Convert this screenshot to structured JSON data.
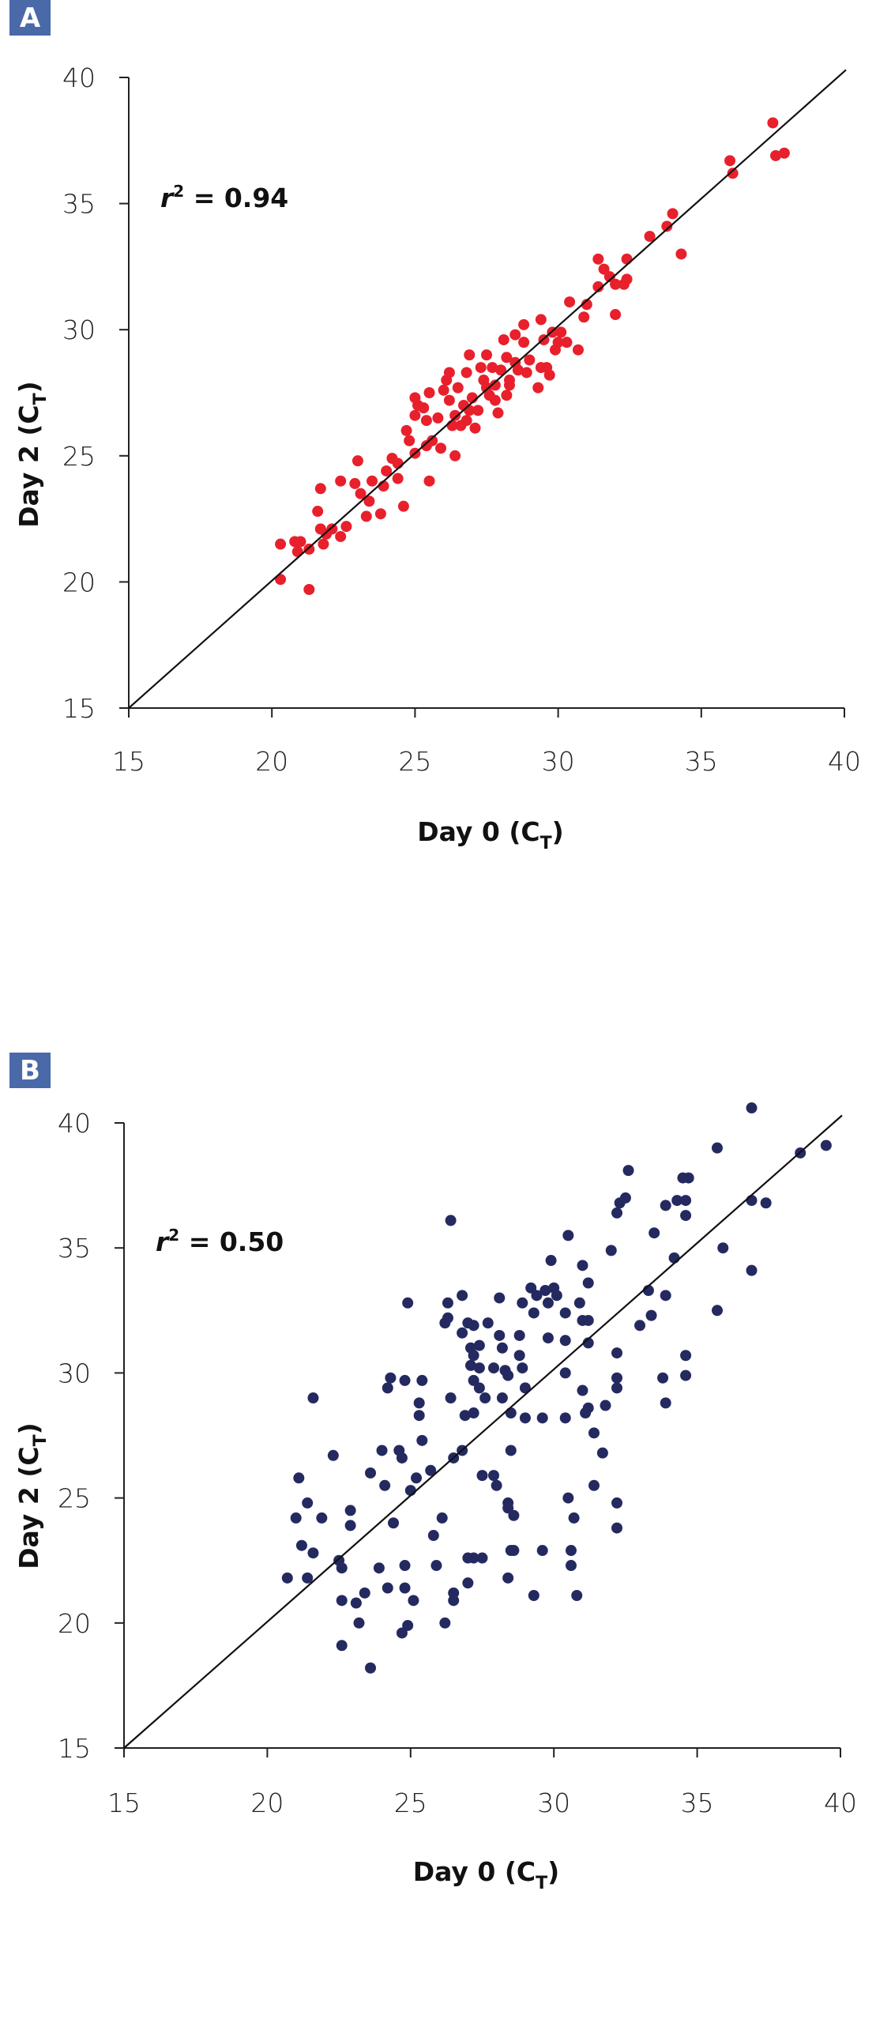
{
  "chart_data": [
    {
      "type": "scatter",
      "panel": "A",
      "annotation": {
        "var": "r",
        "sup": "2",
        "rest": " = 0.94"
      },
      "xlabel": {
        "main": "Day 0 (C",
        "sub": "T",
        "end": ")"
      },
      "ylabel": {
        "main": "Day 2 (C",
        "sub": "T",
        "end": ")"
      },
      "xlim": [
        15,
        40
      ],
      "ylim": [
        15,
        40
      ],
      "xticks": [
        "15",
        "20",
        "25",
        "30",
        "35",
        "40"
      ],
      "yticks": [
        "15",
        "20",
        "25",
        "30",
        "35",
        "40"
      ],
      "reference_line": "y = x",
      "color": "#e8202c",
      "points": [
        [
          37.5,
          38.2
        ],
        [
          37.6,
          36.9
        ],
        [
          37.9,
          37.0
        ],
        [
          36.0,
          36.7
        ],
        [
          36.1,
          36.2
        ],
        [
          34.0,
          34.6
        ],
        [
          33.8,
          34.1
        ],
        [
          33.2,
          33.7
        ],
        [
          34.3,
          33.0
        ],
        [
          32.4,
          32.8
        ],
        [
          31.4,
          32.8
        ],
        [
          31.6,
          32.4
        ],
        [
          31.8,
          32.1
        ],
        [
          32.0,
          31.8
        ],
        [
          32.3,
          31.8
        ],
        [
          32.4,
          32.0
        ],
        [
          31.4,
          31.7
        ],
        [
          32.0,
          30.6
        ],
        [
          31.0,
          31.0
        ],
        [
          30.9,
          30.5
        ],
        [
          30.4,
          31.1
        ],
        [
          30.7,
          29.2
        ],
        [
          30.1,
          29.9
        ],
        [
          30.3,
          29.5
        ],
        [
          29.5,
          29.6
        ],
        [
          29.4,
          30.4
        ],
        [
          29.4,
          28.5
        ],
        [
          29.6,
          28.5
        ],
        [
          29.7,
          28.2
        ],
        [
          29.3,
          27.7
        ],
        [
          28.8,
          30.2
        ],
        [
          28.5,
          29.8
        ],
        [
          28.1,
          29.6
        ],
        [
          28.8,
          29.5
        ],
        [
          28.2,
          28.9
        ],
        [
          28.5,
          28.7
        ],
        [
          28.0,
          28.4
        ],
        [
          28.3,
          28.0
        ],
        [
          27.7,
          28.5
        ],
        [
          27.5,
          29.0
        ],
        [
          26.9,
          29.0
        ],
        [
          27.3,
          28.5
        ],
        [
          26.8,
          28.3
        ],
        [
          26.2,
          28.3
        ],
        [
          26.1,
          28.0
        ],
        [
          26.5,
          27.7
        ],
        [
          26.0,
          27.6
        ],
        [
          25.5,
          27.5
        ],
        [
          25.0,
          27.3
        ],
        [
          25.1,
          27.0
        ],
        [
          25.0,
          26.6
        ],
        [
          25.4,
          26.4
        ],
        [
          25.8,
          26.5
        ],
        [
          26.4,
          26.6
        ],
        [
          26.8,
          26.4
        ],
        [
          27.2,
          26.8
        ],
        [
          27.6,
          27.4
        ],
        [
          27.8,
          27.2
        ],
        [
          28.2,
          27.4
        ],
        [
          27.9,
          26.7
        ],
        [
          28.3,
          27.8
        ],
        [
          26.3,
          26.2
        ],
        [
          25.4,
          25.4
        ],
        [
          25.6,
          25.6
        ],
        [
          25.9,
          25.3
        ],
        [
          26.4,
          25.0
        ],
        [
          25.0,
          25.1
        ],
        [
          24.8,
          25.6
        ],
        [
          24.7,
          26.0
        ],
        [
          25.5,
          24.0
        ],
        [
          24.4,
          24.7
        ],
        [
          24.2,
          24.9
        ],
        [
          24.0,
          24.4
        ],
        [
          24.4,
          24.1
        ],
        [
          23.9,
          23.8
        ],
        [
          24.6,
          23.0
        ],
        [
          23.5,
          24.0
        ],
        [
          23.0,
          24.8
        ],
        [
          22.4,
          24.0
        ],
        [
          22.9,
          23.9
        ],
        [
          23.1,
          23.5
        ],
        [
          23.4,
          23.2
        ],
        [
          23.8,
          22.7
        ],
        [
          23.3,
          22.6
        ],
        [
          22.6,
          22.2
        ],
        [
          22.4,
          21.8
        ],
        [
          22.1,
          22.1
        ],
        [
          21.9,
          21.9
        ],
        [
          21.7,
          22.1
        ],
        [
          21.8,
          21.5
        ],
        [
          21.6,
          22.8
        ],
        [
          21.7,
          23.7
        ],
        [
          21.3,
          21.3
        ],
        [
          21.0,
          21.6
        ],
        [
          20.8,
          21.6
        ],
        [
          20.9,
          21.2
        ],
        [
          20.3,
          21.5
        ],
        [
          20.3,
          20.1
        ],
        [
          21.3,
          19.7
        ],
        [
          26.9,
          26.8
        ],
        [
          27.1,
          26.1
        ],
        [
          27.5,
          27.7
        ],
        [
          28.6,
          28.4
        ],
        [
          29.0,
          28.8
        ],
        [
          27.0,
          27.3
        ],
        [
          26.7,
          27.0
        ],
        [
          29.8,
          29.9
        ],
        [
          30.0,
          29.5
        ],
        [
          26.2,
          27.2
        ],
        [
          25.3,
          26.9
        ],
        [
          27.4,
          28.0
        ],
        [
          27.8,
          27.8
        ],
        [
          26.6,
          26.2
        ],
        [
          28.9,
          28.3
        ],
        [
          29.9,
          29.2
        ]
      ]
    },
    {
      "type": "scatter",
      "panel": "B",
      "annotation": {
        "var": "r",
        "sup": "2",
        "rest": " = 0.50"
      },
      "xlabel": {
        "main": "Day 0 (C",
        "sub": "T",
        "end": ")"
      },
      "ylabel": {
        "main": "Day 2 (C",
        "sub": "T",
        "end": ")"
      },
      "xlim": [
        15,
        40
      ],
      "ylim": [
        15,
        40
      ],
      "xticks": [
        "15",
        "20",
        "25",
        "30",
        "35",
        "40"
      ],
      "yticks": [
        "15",
        "20",
        "25",
        "30",
        "35",
        "40"
      ],
      "reference_line": "y = x",
      "color": "#242a60",
      "points": [
        [
          36.9,
          40.6
        ],
        [
          39.5,
          39.1
        ],
        [
          38.6,
          38.8
        ],
        [
          35.7,
          39.0
        ],
        [
          32.6,
          38.1
        ],
        [
          34.5,
          37.8
        ],
        [
          34.7,
          37.8
        ],
        [
          32.5,
          37.0
        ],
        [
          32.3,
          36.8
        ],
        [
          33.9,
          36.7
        ],
        [
          34.3,
          36.9
        ],
        [
          34.6,
          36.9
        ],
        [
          36.9,
          36.9
        ],
        [
          37.4,
          36.8
        ],
        [
          34.6,
          36.3
        ],
        [
          32.2,
          36.4
        ],
        [
          26.4,
          36.1
        ],
        [
          30.5,
          35.5
        ],
        [
          33.5,
          35.6
        ],
        [
          32.0,
          34.9
        ],
        [
          35.9,
          35.0
        ],
        [
          29.9,
          34.5
        ],
        [
          31.0,
          34.3
        ],
        [
          34.2,
          34.6
        ],
        [
          36.9,
          34.1
        ],
        [
          31.2,
          33.6
        ],
        [
          29.2,
          33.4
        ],
        [
          29.7,
          33.3
        ],
        [
          30.0,
          33.4
        ],
        [
          30.1,
          33.1
        ],
        [
          29.4,
          33.1
        ],
        [
          28.1,
          33.0
        ],
        [
          26.8,
          33.1
        ],
        [
          26.3,
          32.8
        ],
        [
          24.9,
          32.8
        ],
        [
          28.9,
          32.8
        ],
        [
          30.9,
          32.8
        ],
        [
          29.8,
          32.8
        ],
        [
          33.3,
          33.3
        ],
        [
          33.4,
          32.3
        ],
        [
          33.9,
          33.1
        ],
        [
          35.7,
          32.5
        ],
        [
          30.4,
          32.4
        ],
        [
          29.3,
          32.4
        ],
        [
          31.0,
          32.1
        ],
        [
          31.2,
          32.1
        ],
        [
          27.0,
          32.0
        ],
        [
          27.7,
          32.0
        ],
        [
          26.2,
          32.0
        ],
        [
          26.3,
          32.2
        ],
        [
          27.2,
          31.9
        ],
        [
          33.0,
          31.9
        ],
        [
          28.1,
          31.5
        ],
        [
          28.8,
          31.5
        ],
        [
          26.8,
          31.6
        ],
        [
          29.8,
          31.4
        ],
        [
          30.4,
          31.3
        ],
        [
          31.2,
          31.2
        ],
        [
          27.1,
          31.0
        ],
        [
          27.4,
          31.1
        ],
        [
          28.2,
          31.0
        ],
        [
          27.2,
          30.7
        ],
        [
          28.8,
          30.7
        ],
        [
          32.2,
          30.8
        ],
        [
          34.6,
          30.7
        ],
        [
          27.1,
          30.3
        ],
        [
          27.4,
          30.2
        ],
        [
          27.9,
          30.2
        ],
        [
          28.3,
          30.1
        ],
        [
          28.9,
          30.2
        ],
        [
          30.4,
          30.0
        ],
        [
          34.6,
          29.9
        ],
        [
          33.8,
          29.8
        ],
        [
          32.2,
          29.8
        ],
        [
          24.3,
          29.8
        ],
        [
          24.8,
          29.7
        ],
        [
          25.4,
          29.7
        ],
        [
          27.2,
          29.7
        ],
        [
          28.4,
          29.9
        ],
        [
          24.2,
          29.4
        ],
        [
          27.4,
          29.4
        ],
        [
          29.0,
          29.4
        ],
        [
          31.0,
          29.3
        ],
        [
          32.2,
          29.4
        ],
        [
          21.6,
          29.0
        ],
        [
          26.4,
          29.0
        ],
        [
          27.6,
          29.0
        ],
        [
          28.2,
          29.0
        ],
        [
          31.8,
          28.7
        ],
        [
          33.9,
          28.8
        ],
        [
          25.3,
          28.8
        ],
        [
          25.3,
          28.3
        ],
        [
          26.9,
          28.3
        ],
        [
          27.2,
          28.4
        ],
        [
          28.5,
          28.4
        ],
        [
          29.0,
          28.2
        ],
        [
          29.6,
          28.2
        ],
        [
          30.4,
          28.2
        ],
        [
          31.1,
          28.4
        ],
        [
          31.2,
          28.6
        ],
        [
          31.4,
          27.6
        ],
        [
          31.7,
          26.8
        ],
        [
          22.3,
          26.7
        ],
        [
          24.0,
          26.9
        ],
        [
          24.6,
          26.9
        ],
        [
          24.7,
          26.6
        ],
        [
          25.4,
          27.3
        ],
        [
          26.5,
          26.6
        ],
        [
          26.8,
          26.9
        ],
        [
          28.5,
          26.9
        ],
        [
          25.7,
          26.1
        ],
        [
          23.6,
          26.0
        ],
        [
          25.2,
          25.8
        ],
        [
          27.5,
          25.9
        ],
        [
          27.9,
          25.9
        ],
        [
          28.0,
          25.5
        ],
        [
          24.1,
          25.5
        ],
        [
          25.0,
          25.3
        ],
        [
          31.4,
          25.5
        ],
        [
          21.1,
          25.8
        ],
        [
          30.5,
          25.0
        ],
        [
          32.2,
          24.8
        ],
        [
          28.4,
          24.8
        ],
        [
          28.4,
          24.6
        ],
        [
          21.4,
          24.8
        ],
        [
          22.9,
          24.5
        ],
        [
          28.6,
          24.3
        ],
        [
          30.7,
          24.2
        ],
        [
          26.1,
          24.2
        ],
        [
          21.0,
          24.2
        ],
        [
          21.9,
          24.2
        ],
        [
          22.9,
          23.9
        ],
        [
          24.4,
          24.0
        ],
        [
          32.2,
          23.8
        ],
        [
          25.8,
          23.5
        ],
        [
          21.2,
          23.1
        ],
        [
          21.6,
          22.8
        ],
        [
          22.5,
          22.5
        ],
        [
          22.6,
          22.2
        ],
        [
          23.9,
          22.2
        ],
        [
          24.8,
          22.3
        ],
        [
          25.9,
          22.3
        ],
        [
          27.2,
          22.6
        ],
        [
          27.5,
          22.6
        ],
        [
          27.0,
          22.6
        ],
        [
          28.5,
          22.9
        ],
        [
          28.6,
          22.9
        ],
        [
          29.6,
          22.9
        ],
        [
          30.6,
          22.9
        ],
        [
          30.6,
          22.3
        ],
        [
          20.7,
          21.8
        ],
        [
          21.4,
          21.8
        ],
        [
          28.4,
          21.8
        ],
        [
          24.2,
          21.4
        ],
        [
          24.8,
          21.4
        ],
        [
          27.0,
          21.6
        ],
        [
          23.4,
          21.2
        ],
        [
          26.5,
          21.2
        ],
        [
          26.5,
          20.9
        ],
        [
          29.3,
          21.1
        ],
        [
          30.8,
          21.1
        ],
        [
          22.6,
          20.9
        ],
        [
          23.1,
          20.8
        ],
        [
          25.1,
          20.9
        ],
        [
          23.2,
          20.0
        ],
        [
          24.9,
          19.9
        ],
        [
          24.7,
          19.6
        ],
        [
          26.2,
          20.0
        ],
        [
          22.6,
          19.1
        ],
        [
          23.6,
          18.2
        ]
      ]
    }
  ]
}
